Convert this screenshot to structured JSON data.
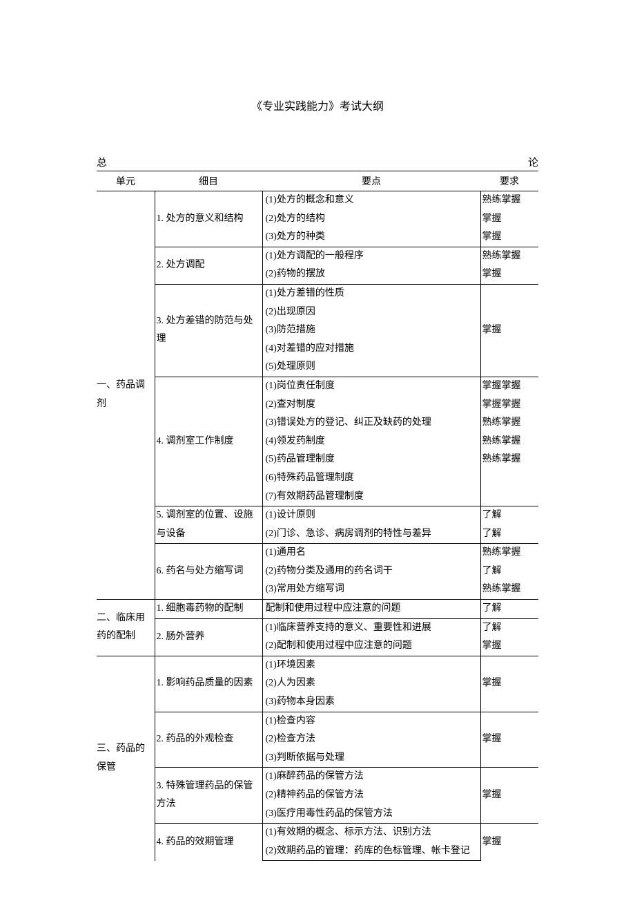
{
  "doc": {
    "title": "《专业实践能力》考试大纲",
    "section_left": "总",
    "section_right": "论",
    "headers": {
      "unit": "单元",
      "detail": "细目",
      "point": "要点",
      "req": "要求"
    },
    "units": [
      {
        "name": "一、药品调剂",
        "details": [
          {
            "name": "1. 处方的意义和结构",
            "points": [
              {
                "text": "(1)处方的概念和意义",
                "req": "熟练掌握"
              },
              {
                "text": "(2)处方的结构",
                "req": "掌握"
              },
              {
                "text": "(3)处方的种类",
                "req": "掌握"
              }
            ]
          },
          {
            "name": "2. 处方调配",
            "points": [
              {
                "text": "(1)处方调配的一般程序",
                "req": "熟练掌握"
              },
              {
                "text": "(2)药物的摆放",
                "req": "掌握"
              }
            ]
          },
          {
            "name": "3. 处方差错的防范与处理",
            "points_block": [
              "(1)处方差错的性质",
              "(2)出现原因",
              "(3)防范措施",
              "(4)对差错的应对措施",
              "(5)处理原则"
            ],
            "req_block": "掌握"
          },
          {
            "name": "4. 调剂室工作制度",
            "points": [
              {
                "text": "(1)岗位责任制度",
                "req": "掌握掌握"
              },
              {
                "text": "(2)查对制度",
                "req": "掌握掌握"
              },
              {
                "text": "(3)错误处方的登记、纠正及缺药的处理",
                "req": "熟练掌握"
              },
              {
                "text": "(4)领发药制度",
                "req": "熟练掌握"
              },
              {
                "text": "(5)药品管理制度",
                "req": "熟练掌握"
              },
              {
                "text": "(6)特殊药品管理制度",
                "req": ""
              },
              {
                "text": "(7)有效期药品管理制度",
                "req": ""
              }
            ]
          },
          {
            "name": "5. 调剂室的位置、设施与设备",
            "points": [
              {
                "text": "(1)设计原则",
                "req": "了解"
              },
              {
                "text": "(2)门诊、急诊、病房调剂的特性与差异",
                "req": "了解"
              }
            ]
          },
          {
            "name": "6. 药名与处方缩写词",
            "points": [
              {
                "text": "(1)通用名",
                "req": "熟练掌握"
              },
              {
                "text": "(2)药物分类及通用的药名词干",
                "req": "了解"
              },
              {
                "text": "(3)常用处方缩写词",
                "req": "熟练掌握"
              }
            ]
          }
        ]
      },
      {
        "name": "二、临床用药的配制",
        "details": [
          {
            "name": "1. 细胞毒药物的配制",
            "points": [
              {
                "text": "配制和使用过程中应注意的问题",
                "req": "了解"
              }
            ]
          },
          {
            "name": "2. 肠外营养",
            "points": [
              {
                "text": "(1)临床营养支持的意义、重要性和进展",
                "req": "了解"
              },
              {
                "text": "(2)配制和使用过程中应注意的问题",
                "req": "掌握"
              }
            ]
          }
        ]
      },
      {
        "name": "三、药品的保管",
        "details": [
          {
            "name": "1. 影响药品质量的因素",
            "points_block": [
              "(1)环境因素",
              "(2)人为因素",
              "(3)药物本身因素"
            ],
            "req_block": "掌握"
          },
          {
            "name": "2. 药品的外观检查",
            "points_block": [
              "(1)检查内容",
              "(2)检查方法",
              "(3)判断依据与处理"
            ],
            "req_block": "掌握"
          },
          {
            "name": "3. 特殊管理药品的保管方法",
            "points_block": [
              "(1)麻醉药品的保管方法",
              "(2)精神药品的保管方法",
              "(3)医疗用毒性药品的保管方法"
            ],
            "req_block": "掌握"
          },
          {
            "name": "4. 药品的效期管理",
            "points_block": [
              "(1)有效期的概念、标示方法、识别方法",
              "(2)效期药品的管理：药库的色标管理、帐卡登记"
            ],
            "req_block": "掌握"
          }
        ]
      }
    ]
  }
}
